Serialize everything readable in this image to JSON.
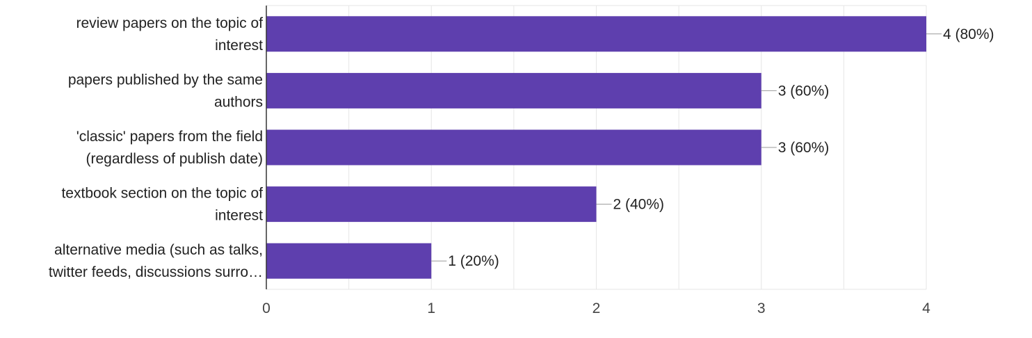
{
  "chart_data": {
    "type": "bar",
    "orientation": "horizontal",
    "categories": [
      [
        "review papers on the topic of",
        "interest"
      ],
      [
        "papers published by the same",
        "authors"
      ],
      [
        "'classic' papers from the field",
        "(regardless of publish date)"
      ],
      [
        "textbook section on the topic of",
        "interest"
      ],
      [
        "alternative media (such as talks,",
        "twitter feeds, discussions surro…"
      ]
    ],
    "values": [
      4,
      3,
      3,
      2,
      1
    ],
    "data_labels": [
      "4 (80%)",
      "3 (60%)",
      "3 (60%)",
      "2 (40%)",
      "1 (20%)"
    ],
    "xlim": [
      0,
      4
    ],
    "x_ticks": [
      0,
      1,
      2,
      3,
      4
    ],
    "grid": true,
    "colors": {
      "bar": "#5e3fae",
      "grid": "#e6e6e6",
      "axis": "#333333",
      "leader": "#999999"
    }
  }
}
